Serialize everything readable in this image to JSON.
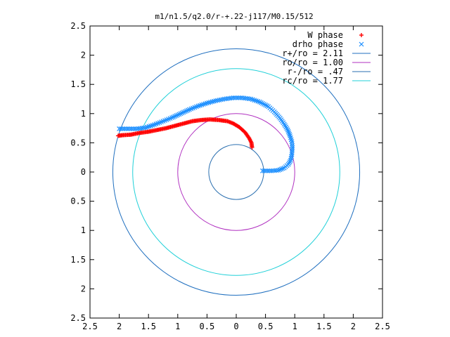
{
  "chart_data": {
    "type": "line",
    "title": "m1/n1.5/q2.0/r-+.22-j117/M0.15/512",
    "xlim": [
      -2.5,
      2.5
    ],
    "ylim": [
      -2.5,
      2.5
    ],
    "x_ticks": [
      "2.5",
      "2",
      "1.5",
      "1",
      "0.5",
      "0",
      "0.5",
      "1",
      "1.5",
      "2",
      "2.5"
    ],
    "y_ticks": [
      "2.5",
      "2",
      "1.5",
      "1",
      "0.5",
      "0",
      "0.5",
      "1",
      "1.5",
      "2",
      "2.5"
    ],
    "legend_position": "top-right",
    "grid": false,
    "series": [
      {
        "name": "W phase",
        "kind": "points",
        "marker": "+",
        "color": "#ff0000",
        "points": [
          [
            0.27,
            0.42
          ],
          [
            0.26,
            0.5
          ],
          [
            0.22,
            0.58
          ],
          [
            0.15,
            0.68
          ],
          [
            0.05,
            0.77
          ],
          [
            -0.05,
            0.83
          ],
          [
            -0.15,
            0.87
          ],
          [
            -0.3,
            0.89
          ],
          [
            -0.45,
            0.9
          ],
          [
            -0.6,
            0.89
          ],
          [
            -0.75,
            0.87
          ],
          [
            -0.9,
            0.83
          ],
          [
            -1.05,
            0.79
          ],
          [
            -1.2,
            0.75
          ],
          [
            -1.35,
            0.72
          ],
          [
            -1.5,
            0.69
          ],
          [
            -1.65,
            0.67
          ],
          [
            -1.8,
            0.64
          ],
          [
            -1.95,
            0.63
          ],
          [
            -2.02,
            0.62
          ]
        ]
      },
      {
        "name": "drho phase",
        "kind": "points",
        "marker": "x",
        "color": "#1e90ff",
        "points": [
          [
            0.45,
            0.02
          ],
          [
            0.6,
            0.02
          ],
          [
            0.72,
            0.03
          ],
          [
            0.82,
            0.07
          ],
          [
            0.89,
            0.13
          ],
          [
            0.93,
            0.2
          ],
          [
            0.95,
            0.3
          ],
          [
            0.96,
            0.42
          ],
          [
            0.95,
            0.52
          ],
          [
            0.92,
            0.62
          ],
          [
            0.88,
            0.72
          ],
          [
            0.82,
            0.82
          ],
          [
            0.75,
            0.92
          ],
          [
            0.65,
            1.03
          ],
          [
            0.55,
            1.12
          ],
          [
            0.4,
            1.2
          ],
          [
            0.25,
            1.25
          ],
          [
            0.1,
            1.27
          ],
          [
            -0.05,
            1.27
          ],
          [
            -0.2,
            1.25
          ],
          [
            -0.35,
            1.22
          ],
          [
            -0.5,
            1.18
          ],
          [
            -0.65,
            1.13
          ],
          [
            -0.8,
            1.07
          ],
          [
            -0.95,
            1.0
          ],
          [
            -1.1,
            0.93
          ],
          [
            -1.25,
            0.87
          ],
          [
            -1.4,
            0.81
          ],
          [
            -1.55,
            0.76
          ],
          [
            -1.7,
            0.74
          ],
          [
            -1.85,
            0.74
          ],
          [
            -2.0,
            0.74
          ]
        ]
      },
      {
        "name": "r+/ro = 2.11",
        "kind": "circle",
        "radius": 2.11,
        "color": "#1f6fbf"
      },
      {
        "name": "ro/ro = 1.00",
        "kind": "circle",
        "radius": 1.0,
        "color": "#b030c0"
      },
      {
        "name": "r-/ro = .47",
        "kind": "circle",
        "radius": 0.47,
        "color": "#2a6fb0"
      },
      {
        "name": "rc/ro = 1.77",
        "kind": "circle",
        "radius": 1.77,
        "color": "#20d0d8"
      }
    ]
  }
}
